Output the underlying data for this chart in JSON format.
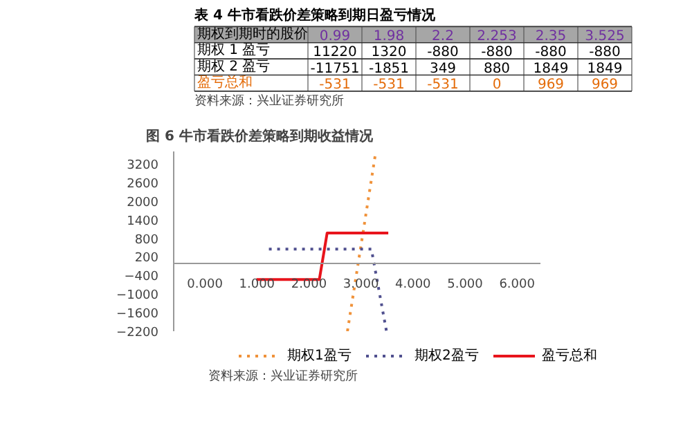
{
  "chart_data": [
    {
      "type": "other",
      "title": "表 4 牛市看跌价差策略到期日盈亏情况",
      "xlabel": "期权到期时的股价",
      "categories": [
        "0.99",
        "1.98",
        "2.2",
        "2.253",
        "2.35",
        "3.525"
      ],
      "y_categories": [
        "期权 1 盈亏",
        "期权 2 盈亏",
        "盈亏总和"
      ],
      "cell_labels": [
        [
          "11220",
          "1320",
          "-880",
          "-880",
          "-880",
          "-880"
        ],
        [
          "-11751",
          "-1851",
          "349",
          "880",
          "1849",
          "1849"
        ],
        [
          "-531",
          "-531",
          "-531",
          "0",
          "969",
          "969"
        ]
      ],
      "annotations": [
        "资料来源：兴业证券研究所"
      ]
    },
    {
      "type": "line",
      "title": "图 6 牛市看跌价差策略到期收益情况",
      "series": [
        {
          "name": "期权1盈亏",
          "color": "#f0923a",
          "line_style": "dotted",
          "x": [
            2.74,
            3.28
          ],
          "values": [
            -2200,
            3540
          ]
        },
        {
          "name": "期权2盈亏",
          "color": "#50508f",
          "line_style": "dotted",
          "x": [
            1.23,
            3.2,
            3.49
          ],
          "values": [
            450,
            450,
            -2200
          ]
        },
        {
          "name": "盈亏总和",
          "color": "#e8141c",
          "line_style": "solid",
          "x": [
            0.99,
            2.2,
            2.35,
            3.525
          ],
          "values": [
            -531,
            -531,
            969,
            969
          ]
        }
      ],
      "xlim": [
        -0.6,
        6.45
      ],
      "ylim": [
        -2200,
        3600
      ],
      "xticks": [
        {
          "value": 0,
          "label": "0.000"
        },
        {
          "value": 1,
          "label": "1.000"
        },
        {
          "value": 2,
          "label": "2.000"
        },
        {
          "value": 3,
          "label": "3.000"
        },
        {
          "value": 4,
          "label": "4.000"
        },
        {
          "value": 5,
          "label": "5.000"
        },
        {
          "value": 6,
          "label": "6.000"
        }
      ],
      "yticks": [
        -2200,
        -1600,
        -1000,
        -400,
        200,
        800,
        1400,
        2000,
        2600,
        3200
      ],
      "grid": false,
      "legend": "bottom",
      "annotations": [
        "资料来源：兴业证券研究所"
      ]
    }
  ]
}
